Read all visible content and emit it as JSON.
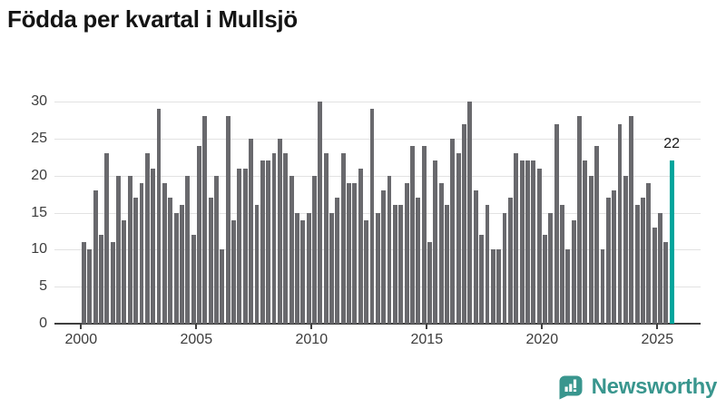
{
  "title": "Födda per kvartal i Mullsjö",
  "chart_data": {
    "type": "bar",
    "title": "Födda per kvartal i Mullsjö",
    "xlabel": "",
    "ylabel": "",
    "unit": "födda per kvartal",
    "start": "2000-Q1",
    "end": "2025-Q3",
    "x_tick_labels": [
      "2000",
      "2005",
      "2010",
      "2015",
      "2020",
      "2025"
    ],
    "y_ticks": [
      0,
      5,
      10,
      15,
      20,
      25,
      30
    ],
    "ylim": [
      0,
      30
    ],
    "grid": true,
    "legend_position": "none",
    "values": [
      11,
      10,
      18,
      12,
      23,
      11,
      20,
      14,
      20,
      17,
      19,
      23,
      21,
      29,
      19,
      17,
      15,
      16,
      20,
      12,
      24,
      28,
      17,
      20,
      10,
      28,
      14,
      21,
      21,
      25,
      16,
      22,
      22,
      23,
      25,
      23,
      20,
      15,
      14,
      15,
      20,
      30,
      23,
      15,
      17,
      23,
      19,
      19,
      21,
      14,
      29,
      15,
      18,
      20,
      16,
      16,
      19,
      24,
      17,
      24,
      11,
      22,
      19,
      16,
      25,
      23,
      27,
      30,
      18,
      12,
      16,
      10,
      10,
      15,
      17,
      23,
      22,
      22,
      22,
      21,
      12,
      15,
      27,
      16,
      10,
      14,
      28,
      22,
      20,
      24,
      10,
      17,
      18,
      27,
      20,
      28,
      16,
      17,
      19,
      13,
      15,
      11,
      22
    ],
    "highlight_index": 102,
    "highlight_value_label": "22",
    "bar_color": "#69696d",
    "highlight_color": "#00a59c"
  },
  "footer": {
    "brand": "Newsworthy",
    "brand_color": "#39968e"
  }
}
